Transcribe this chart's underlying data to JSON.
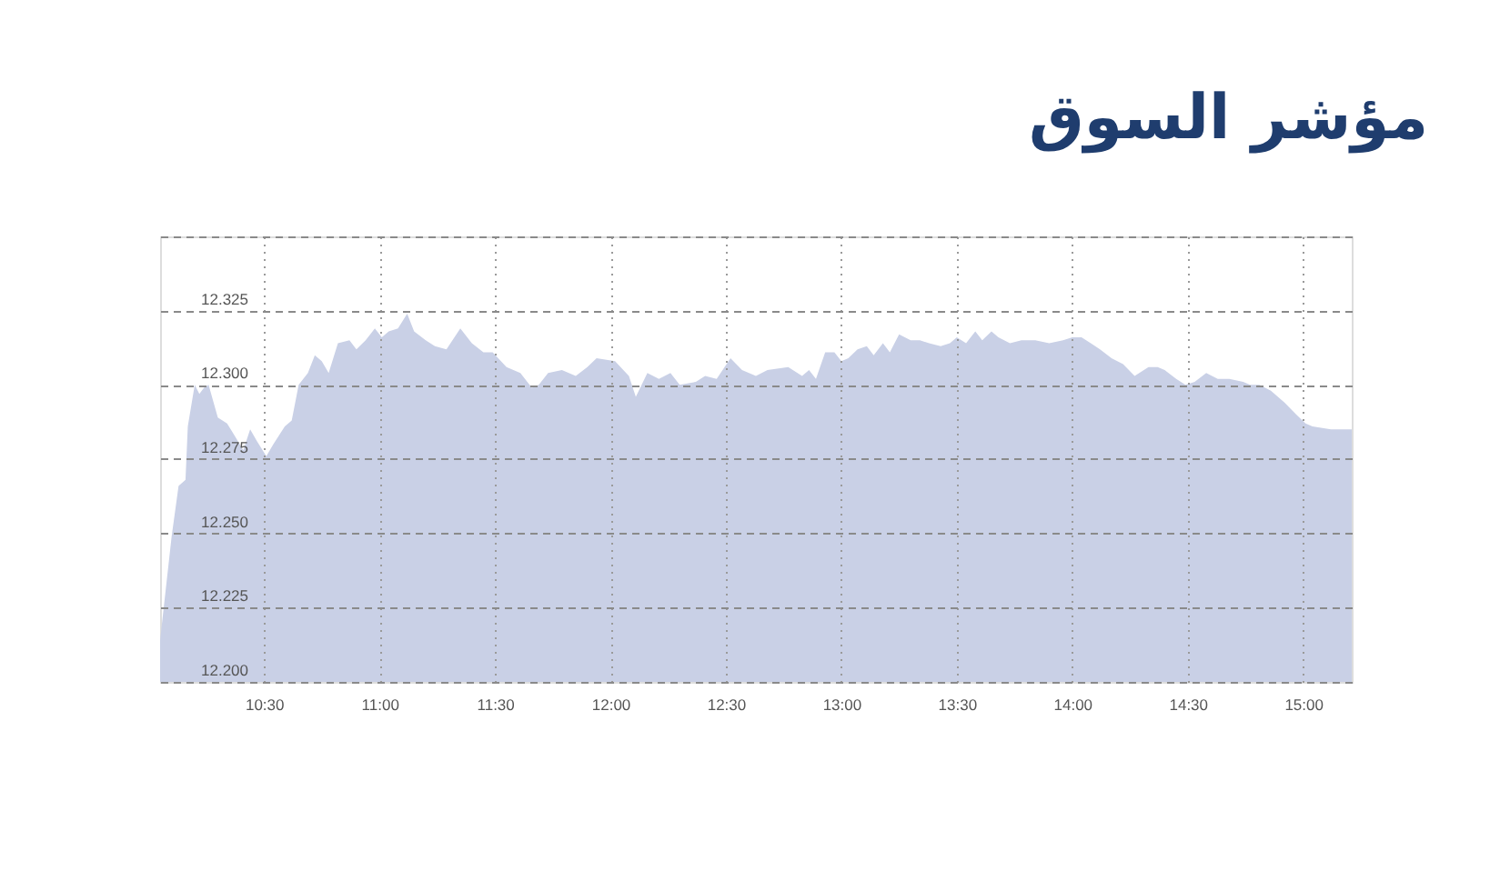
{
  "chart_data": {
    "type": "area",
    "title": "مؤشر السوق",
    "x": [
      10.05,
      10.1,
      10.13,
      10.16,
      10.17,
      10.2,
      10.22,
      10.24,
      10.26,
      10.3,
      10.34,
      10.38,
      10.41,
      10.44,
      10.47,
      10.51,
      10.54,
      10.59,
      10.62,
      10.65,
      10.69,
      10.72,
      10.75,
      10.78,
      10.82,
      10.87,
      10.9,
      10.94,
      10.98,
      11.01,
      11.04,
      11.08,
      11.12,
      11.15,
      11.2,
      11.24,
      11.29,
      11.35,
      11.4,
      11.45,
      11.49,
      11.55,
      11.61,
      11.66,
      11.69,
      11.73,
      11.79,
      11.85,
      11.9,
      11.94,
      12.02,
      12.08,
      12.11,
      12.16,
      12.21,
      12.26,
      12.3,
      12.37,
      12.41,
      12.46,
      12.52,
      12.57,
      12.63,
      12.68,
      12.77,
      12.83,
      12.86,
      12.89,
      12.93,
      12.97,
      13.0,
      13.03,
      13.07,
      13.11,
      13.14,
      13.18,
      13.21,
      13.25,
      13.3,
      13.34,
      13.38,
      13.43,
      13.47,
      13.5,
      13.54,
      13.58,
      13.61,
      13.65,
      13.68,
      13.73,
      13.78,
      13.84,
      13.9,
      13.96,
      14.0,
      14.04,
      14.08,
      14.12,
      14.17,
      14.22,
      14.27,
      14.33,
      14.37,
      14.4,
      14.45,
      14.49,
      14.53,
      14.58,
      14.63,
      14.68,
      14.74,
      14.77,
      14.81,
      14.86,
      14.92,
      14.97,
      15.01,
      15.04,
      15.12,
      15.21
    ],
    "values": [
      12.214,
      12.249,
      12.266,
      12.268,
      12.286,
      12.3,
      12.297,
      12.299,
      12.3,
      12.289,
      12.287,
      12.282,
      12.278,
      12.285,
      12.281,
      12.276,
      12.28,
      12.286,
      12.288,
      12.3,
      12.304,
      12.31,
      12.308,
      12.304,
      12.314,
      12.315,
      12.312,
      12.315,
      12.319,
      12.316,
      12.318,
      12.319,
      12.324,
      12.318,
      12.315,
      12.313,
      12.312,
      12.319,
      12.314,
      12.311,
      12.311,
      12.306,
      12.304,
      12.299,
      12.3,
      12.304,
      12.305,
      12.303,
      12.306,
      12.309,
      12.308,
      12.303,
      12.296,
      12.304,
      12.302,
      12.304,
      12.3,
      12.301,
      12.303,
      12.302,
      12.309,
      12.305,
      12.303,
      12.305,
      12.306,
      12.303,
      12.305,
      12.302,
      12.311,
      12.311,
      12.308,
      12.309,
      12.312,
      12.313,
      12.31,
      12.314,
      12.311,
      12.317,
      12.315,
      12.315,
      12.314,
      12.313,
      12.314,
      12.316,
      12.314,
      12.318,
      12.315,
      12.318,
      12.316,
      12.314,
      12.315,
      12.315,
      12.314,
      12.315,
      12.316,
      12.316,
      12.314,
      12.312,
      12.309,
      12.307,
      12.303,
      12.306,
      12.306,
      12.305,
      12.302,
      12.3,
      12.301,
      12.304,
      12.302,
      12.302,
      12.301,
      12.3,
      12.3,
      12.298,
      12.294,
      12.29,
      12.287,
      12.286,
      12.285,
      12.285
    ],
    "color": "#c9d0e6",
    "xlim": [
      10.05,
      15.21
    ],
    "xticks": [
      {
        "value": 10.5,
        "label": "10:30"
      },
      {
        "value": 11.0,
        "label": "11:00"
      },
      {
        "value": 11.5,
        "label": "11:30"
      },
      {
        "value": 12.0,
        "label": "12:00"
      },
      {
        "value": 12.5,
        "label": "12:30"
      },
      {
        "value": 13.0,
        "label": "13:00"
      },
      {
        "value": 13.5,
        "label": "13:30"
      },
      {
        "value": 14.0,
        "label": "14:00"
      },
      {
        "value": 14.5,
        "label": "14:30"
      },
      {
        "value": 15.0,
        "label": "15:00"
      }
    ],
    "ylim": [
      12.2,
      12.35
    ],
    "yticks": [
      {
        "value": 12.2,
        "label": "12.200"
      },
      {
        "value": 12.225,
        "label": "12.225"
      },
      {
        "value": 12.25,
        "label": "12.250"
      },
      {
        "value": 12.275,
        "label": "12.275"
      },
      {
        "value": 12.3,
        "label": "12.300"
      },
      {
        "value": 12.325,
        "label": "12.325"
      },
      {
        "value": 12.35,
        "label": null
      }
    ],
    "grid": true
  }
}
